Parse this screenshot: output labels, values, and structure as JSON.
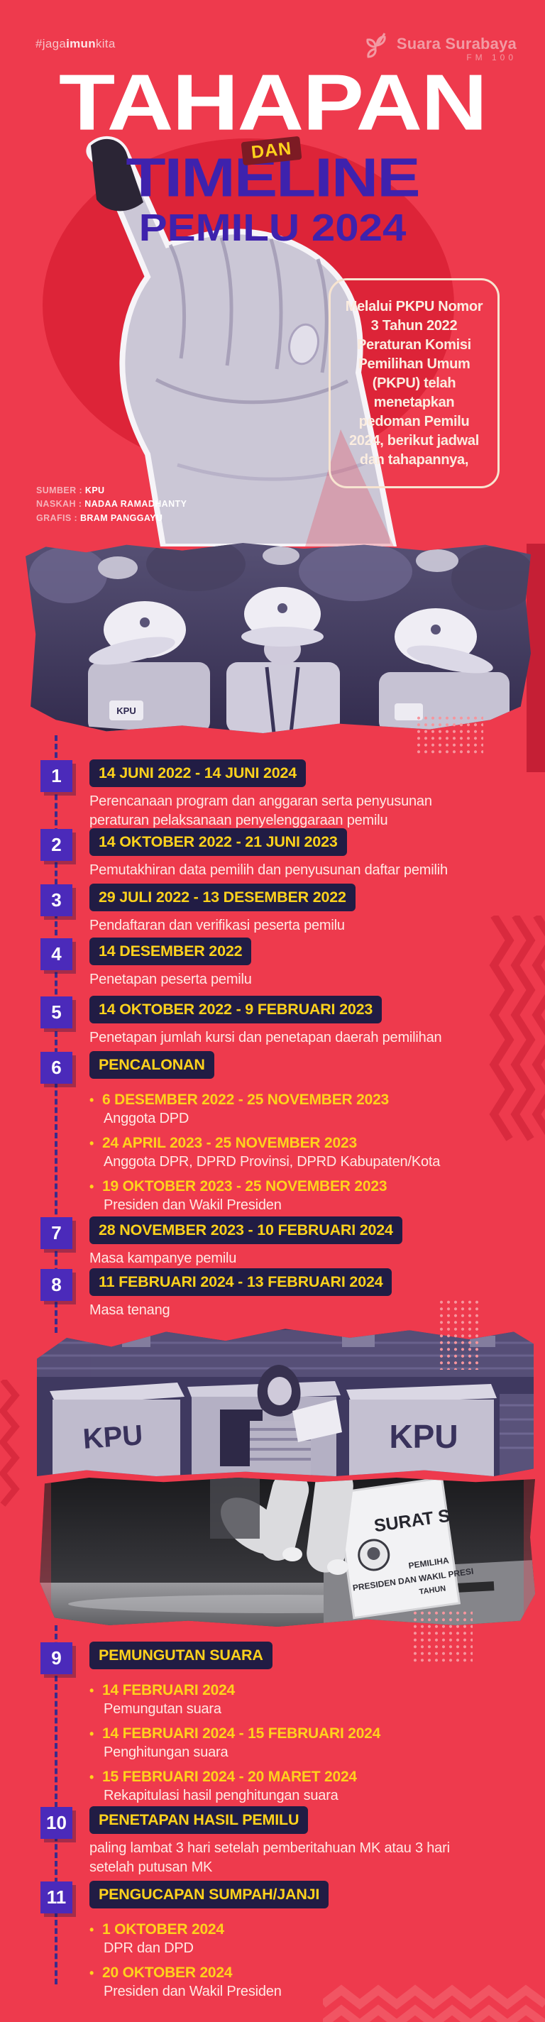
{
  "header": {
    "hashtag_prefix": "#jaga",
    "hashtag_bold": "imun",
    "hashtag_suffix": "kita",
    "brand_name": "Suara Surabaya",
    "brand_fm": "FM 100"
  },
  "title": {
    "line1": "TAHAPAN",
    "connector": "DAN",
    "line2": "TIMELINE",
    "line3": "PEMILU 2024"
  },
  "intro": "Melalui PKPU Nomor 3 Tahun 2022 Peraturan Komisi Pemilihan Umum (PKPU) telah menetapkan pedoman Pemilu 2024, berikut jadwal dan tahapannya,",
  "credits": [
    {
      "label": "SUMBER :",
      "value": "KPU"
    },
    {
      "label": "NASKAH :",
      "value": "NADAA RAMADHANTY"
    },
    {
      "label": "GRAFIS :",
      "value": "BRAM PANGGAYU"
    }
  ],
  "photos": {
    "officers_patch": "KPU",
    "booth_label_left": "KPU",
    "booth_label_right": "KPU",
    "ballot_title": "SURAT S",
    "ballot_line1": "PEMILIHA",
    "ballot_line2": "PRESIDEN DAN WAKIL PRESI",
    "ballot_line3": "TAHUN"
  },
  "timeline": [
    {
      "num": "1",
      "date": "14 JUNI 2022 - 14 JUNI 2024",
      "desc": "Perencanaan program dan anggaran serta penyusunan peraturan pelaksanaan penyelenggaraan pemilu"
    },
    {
      "num": "2",
      "date": "14 OKTOBER 2022 - 21 JUNI 2023",
      "desc": "Pemutakhiran data pemilih dan penyusunan daftar pemilih"
    },
    {
      "num": "3",
      "date": "29 JULI 2022 - 13 DESEMBER 2022",
      "desc": "Pendaftaran dan verifikasi peserta pemilu"
    },
    {
      "num": "4",
      "date": "14 DESEMBER 2022",
      "desc": "Penetapan peserta pemilu"
    },
    {
      "num": "5",
      "date": "14 OKTOBER 2022 - 9 FEBRUARI 2023",
      "desc": "Penetapan jumlah kursi dan penetapan daerah pemilihan"
    },
    {
      "num": "6",
      "title": "PENCALONAN",
      "bullets": [
        {
          "date": "6 DESEMBER 2022 - 25 NOVEMBER 2023",
          "desc": "Anggota DPD"
        },
        {
          "date": "24 APRIL 2023 - 25 NOVEMBER 2023",
          "desc": "Anggota DPR, DPRD Provinsi, DPRD Kabupaten/Kota"
        },
        {
          "date": "19 OKTOBER 2023 - 25 NOVEMBER 2023",
          "desc": "Presiden dan Wakil Presiden"
        }
      ]
    },
    {
      "num": "7",
      "date": "28 NOVEMBER 2023 - 10 FEBRUARI 2024",
      "desc": "Masa kampanye pemilu"
    },
    {
      "num": "8",
      "date": "11 FEBRUARI 2024 - 13 FEBRUARI 2024",
      "desc": "Masa tenang"
    },
    {
      "num": "9",
      "title": "PEMUNGUTAN SUARA",
      "bullets": [
        {
          "date": "14 FEBRUARI 2024",
          "desc": "Pemungutan suara"
        },
        {
          "date": "14 FEBRUARI 2024 - 15 FEBRUARI 2024",
          "desc": "Penghitungan suara"
        },
        {
          "date": "15 FEBRUARI 2024 - 20 MARET 2024",
          "desc": "Rekapitulasi hasil penghitungan suara"
        }
      ]
    },
    {
      "num": "10",
      "title": "PENETAPAN HASIL PEMILU",
      "desc": "paling lambat 3 hari setelah pemberitahuan MK atau 3 hari setelah putusan MK"
    },
    {
      "num": "11",
      "title": "PENGUCAPAN SUMPAH/JANJI",
      "bullets": [
        {
          "date": "1 OKTOBER 2024",
          "desc": "DPR dan DPD"
        },
        {
          "date": "20 OKTOBER 2024",
          "desc": "Presiden dan Wakil Presiden"
        }
      ]
    }
  ],
  "colors": {
    "background_red": "#EE3A4D",
    "accent_dark_red": "#DD2438",
    "navy_badge": "#211C44",
    "yellow": "#FFD21C",
    "purple_number": "#4B2ABA",
    "title_purple": "#3E22AD",
    "maroon_badge": "#7D1B24",
    "cream": "#FBEDE0"
  }
}
